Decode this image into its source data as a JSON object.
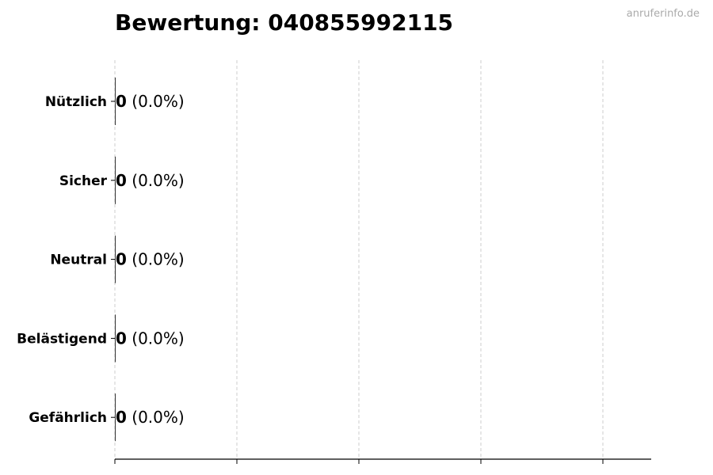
{
  "title": "Bewertung: 040855992115",
  "watermark": "anruferinfo.de",
  "chart_data": {
    "type": "bar",
    "orientation": "horizontal",
    "title": "Bewertung: 040855992115",
    "categories": [
      "Nützlich",
      "Sicher",
      "Neutral",
      "Belästigend",
      "Gefährlich"
    ],
    "values": [
      0,
      0,
      0,
      0,
      0
    ],
    "data_labels": [
      {
        "count": "0",
        "pct": "(0.0%)"
      },
      {
        "count": "0",
        "pct": "(0.0%)"
      },
      {
        "count": "0",
        "pct": "(0.0%)"
      },
      {
        "count": "0",
        "pct": "(0.0%)"
      },
      {
        "count": "0",
        "pct": "(0.0%)"
      }
    ],
    "xlabel": "",
    "ylabel": "",
    "grid": "x, dashed",
    "bar_color": "#333333",
    "grid_color": "#cccccc"
  }
}
